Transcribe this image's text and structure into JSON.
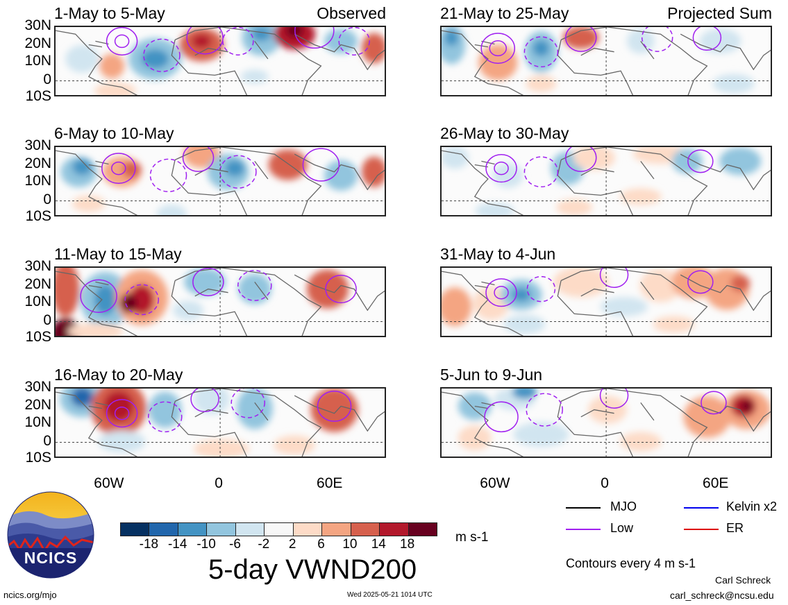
{
  "panels_left": [
    {
      "title": "1-May to 5-May",
      "corner_label": "Observed"
    },
    {
      "title": "6-May to 10-May",
      "corner_label": ""
    },
    {
      "title": "11-May to 15-May",
      "corner_label": ""
    },
    {
      "title": "16-May to 20-May",
      "corner_label": ""
    }
  ],
  "panels_right": [
    {
      "title": "21-May to 25-May",
      "corner_label": "Projected Sum"
    },
    {
      "title": "26-May to 30-May",
      "corner_label": ""
    },
    {
      "title": "31-May to 4-Jun",
      "corner_label": ""
    },
    {
      "title": "5-Jun to 9-Jun",
      "corner_label": ""
    }
  ],
  "lat_labels": [
    "30N",
    "20N",
    "10N",
    "0",
    "10S"
  ],
  "lon_labels": [
    "60W",
    "0",
    "60E"
  ],
  "colorbar": {
    "colors": [
      "#053061",
      "#2166ac",
      "#4393c3",
      "#92c5de",
      "#d1e5f0",
      "#f7f7f7",
      "#fddbc7",
      "#f4a582",
      "#d6604d",
      "#b2182b",
      "#67001f"
    ],
    "ticks": [
      "-18",
      "-14",
      "-10",
      "-6",
      "-2",
      "2",
      "6",
      "10",
      "14",
      "18"
    ],
    "units": "m s-1"
  },
  "title": "5-day VWND200",
  "legend": {
    "items": [
      {
        "label": "MJO",
        "color": "#000000"
      },
      {
        "label": "Kelvin x2",
        "color": "#0000ee"
      },
      {
        "label": "Low",
        "color": "#a020f0"
      },
      {
        "label": "ER",
        "color": "#dd0000"
      }
    ],
    "contour_note": "Contours every 4 m s-1"
  },
  "logo_text": "NCICS",
  "footer": {
    "left": "ncics.org/mjo",
    "center": "Wed 2025-05-21 1014 UTC",
    "author": "Carl Schreck",
    "email": "carl_schreck@ncsu.edu"
  }
}
